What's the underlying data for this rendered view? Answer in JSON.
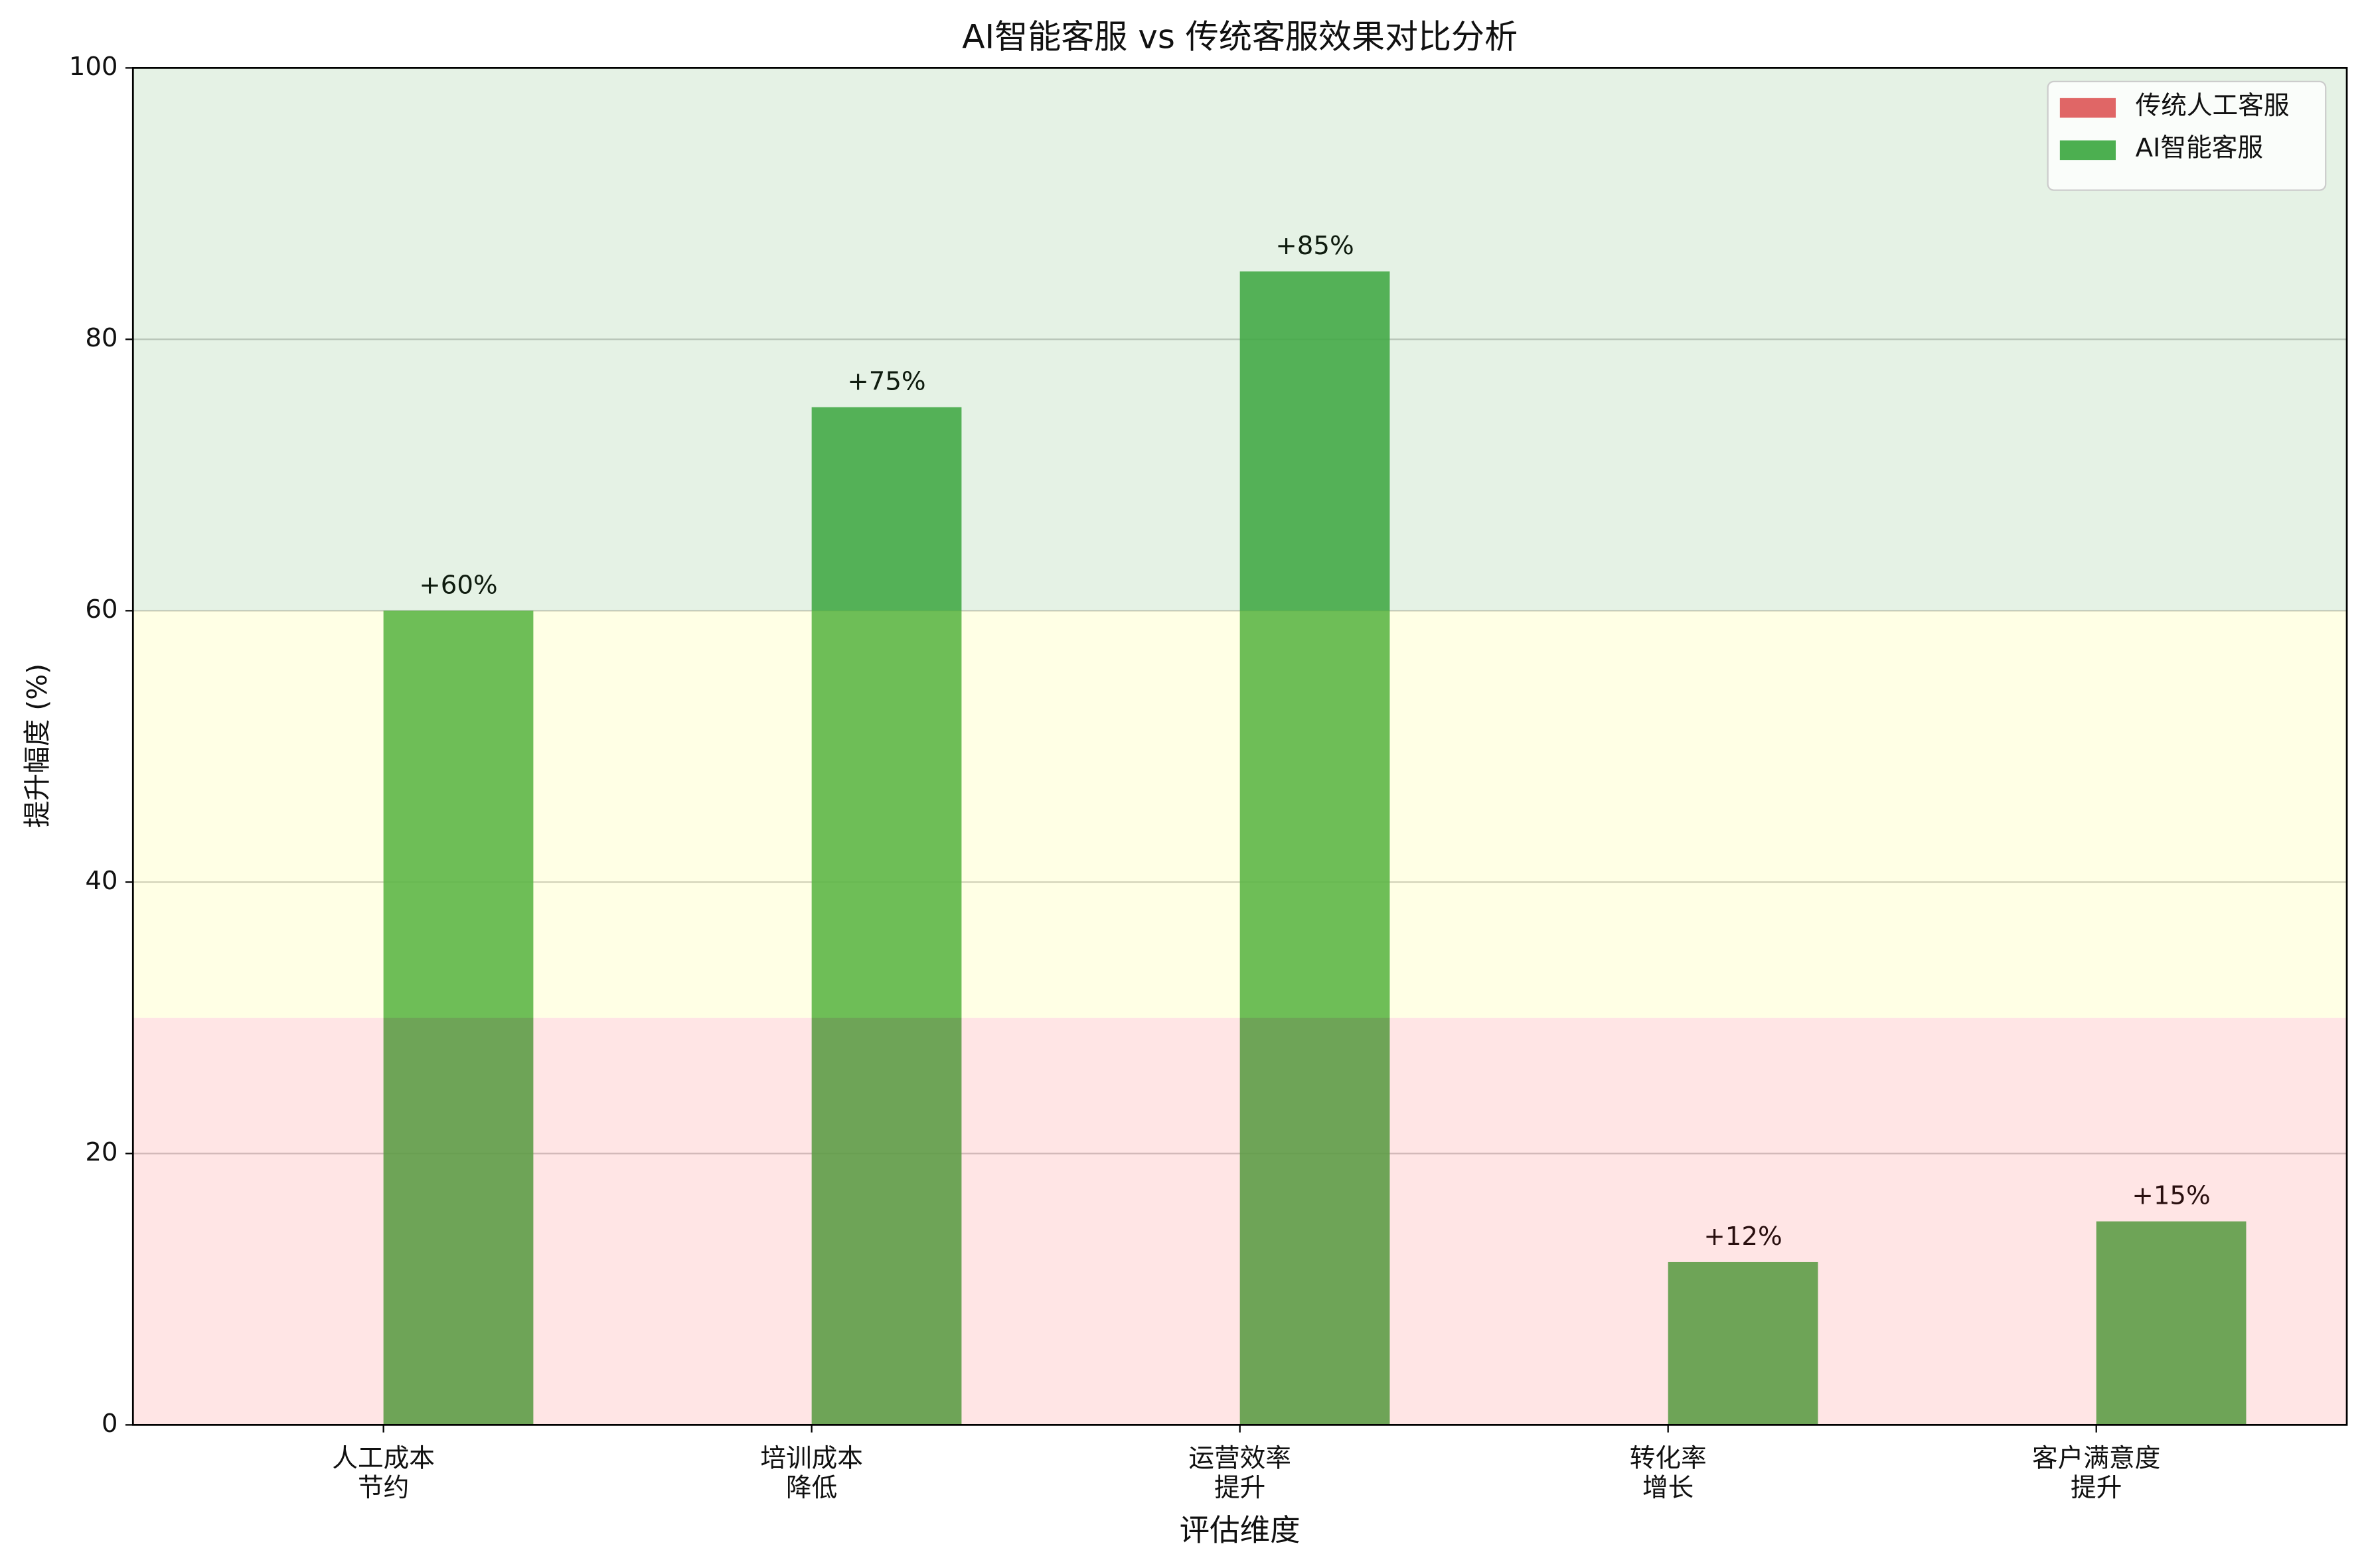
{
  "chart_data": {
    "type": "bar",
    "title": "AI智能客服 vs 传统客服效果对比分析",
    "x_label": "评估维度",
    "y_label": "提升幅度 (%)",
    "categories": [
      "人工成本\n节约",
      "培训成本\n降低",
      "运营效率\n提升",
      "转化率\n增长",
      "客户满意度\n提升"
    ],
    "series": [
      {
        "name": "传统人工客服",
        "color": "#e06666",
        "values": [
          0,
          0,
          0,
          0,
          0
        ]
      },
      {
        "name": "AI智能客服",
        "color": "#4caf50",
        "values": [
          60,
          75,
          85,
          12,
          15
        ],
        "value_labels": [
          "+60%",
          "+75%",
          "+85%",
          "+12%",
          "+15%"
        ]
      }
    ],
    "ylim": [
      0,
      100
    ],
    "yticks": [
      0,
      20,
      40,
      60,
      80,
      100
    ],
    "grid": true,
    "legend": "upper right",
    "bands": [
      {
        "from": 0,
        "to": 30,
        "color": "red"
      },
      {
        "from": 30,
        "to": 60,
        "color": "yellow"
      },
      {
        "from": 60,
        "to": 100,
        "color": "green"
      }
    ]
  }
}
